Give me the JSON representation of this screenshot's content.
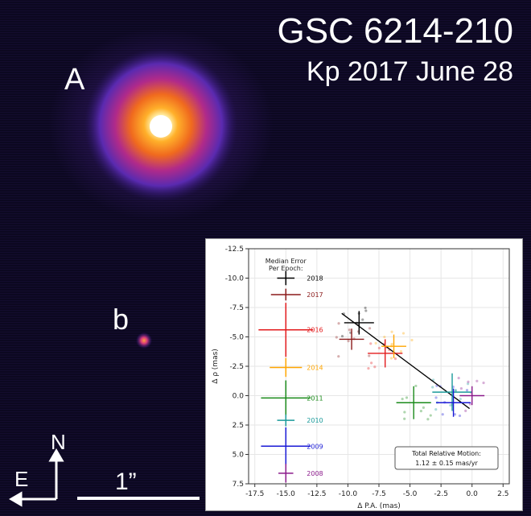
{
  "image": {
    "title": "GSC 6214-210",
    "subtitle": "Kp 2017 June 28",
    "label_a": "A",
    "label_b": "b",
    "compass_north": "N",
    "compass_east": "E",
    "scale_label": "1”",
    "background_color": "#0c0820",
    "star_colors": [
      "#ffffff",
      "#ffd24a",
      "#ff7a1a",
      "#d63a7a",
      "#7a3ad6"
    ]
  },
  "chart_data": {
    "type": "scatter",
    "xlabel": "Δ P.A. (mas)",
    "ylabel": "Δ ρ (mas)",
    "xlim": [
      -18,
      3
    ],
    "ylim": [
      7.5,
      -12.5
    ],
    "xticks": [
      "-17.5",
      "-15.0",
      "-12.5",
      "-10.0",
      "-7.5",
      "-5.0",
      "-2.5",
      "0.0",
      "2.5"
    ],
    "yticks": [
      "-12.5",
      "-10.0",
      "-7.5",
      "-5.0",
      "-2.5",
      "0.0",
      "2.5",
      "5.0",
      "7.5"
    ],
    "grid": true,
    "legend_title": "Median Error\nPer Epoch:",
    "legend": [
      {
        "year": "2018",
        "color": "#000000",
        "y": -10.0,
        "xerr": 0.7,
        "yerr": 0.6
      },
      {
        "year": "2017",
        "color": "#8b1a1a",
        "y": -8.6,
        "xerr": 1.2,
        "yerr": 0.5
      },
      {
        "year": "2016",
        "color": "#e31a1c",
        "y": -5.6,
        "xerr": 2.2,
        "yerr": 2.3
      },
      {
        "year": "2014",
        "color": "#ffa500",
        "y": -2.4,
        "xerr": 1.3,
        "yerr": 0.8
      },
      {
        "year": "2011",
        "color": "#1a8a1a",
        "y": 0.2,
        "xerr": 2.0,
        "yerr": 1.5
      },
      {
        "year": "2010",
        "color": "#1a9a9a",
        "y": 2.1,
        "xerr": 0.7,
        "yerr": 0.5
      },
      {
        "year": "2009",
        "color": "#1a1ad6",
        "y": 4.3,
        "xerr": 2.0,
        "yerr": 1.6
      },
      {
        "year": "2008",
        "color": "#8b1a8b",
        "y": 6.6,
        "xerr": 0.6,
        "yerr": 0.8
      }
    ],
    "series": [
      {
        "name": "2018",
        "color": "#000000",
        "x": -9.1,
        "y": -6.2,
        "xerr": 1.2,
        "yerr": 1.0
      },
      {
        "name": "2017",
        "color": "#8b1a1a",
        "x": -9.7,
        "y": -4.8,
        "xerr": 1.0,
        "yerr": 0.9
      },
      {
        "name": "2016",
        "color": "#e31a1c",
        "x": -7.0,
        "y": -3.6,
        "xerr": 1.4,
        "yerr": 1.2
      },
      {
        "name": "2014",
        "color": "#ffa500",
        "x": -6.3,
        "y": -4.2,
        "xerr": 1.0,
        "yerr": 1.0
      },
      {
        "name": "2011",
        "color": "#1a8a1a",
        "x": -4.7,
        "y": 0.6,
        "xerr": 1.4,
        "yerr": 1.4
      },
      {
        "name": "2010",
        "color": "#1a9a9a",
        "x": -1.6,
        "y": -0.3,
        "xerr": 1.6,
        "yerr": 1.6
      },
      {
        "name": "2009",
        "color": "#1a1ad6",
        "x": -1.5,
        "y": 0.6,
        "xerr": 1.4,
        "yerr": 1.2
      },
      {
        "name": "2008",
        "color": "#8b1a8b",
        "x": 0.0,
        "y": 0.0,
        "xerr": 1.0,
        "yerr": 0.8
      }
    ],
    "fit_line": {
      "x": [
        -10.5,
        -0.2
      ],
      "y": [
        -7.0,
        1.1
      ],
      "color": "#000000"
    },
    "annotation": {
      "line1": "Total Relative Motion:",
      "line2": "1.12 ± 0.15 mas/yr"
    }
  }
}
